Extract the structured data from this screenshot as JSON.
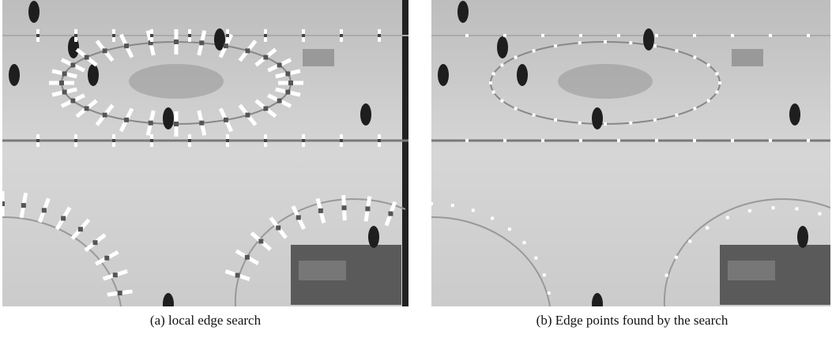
{
  "figure": {
    "panels": [
      {
        "caption": "(a) local edge search"
      },
      {
        "caption": "(b) Edge points found by the search"
      }
    ]
  }
}
